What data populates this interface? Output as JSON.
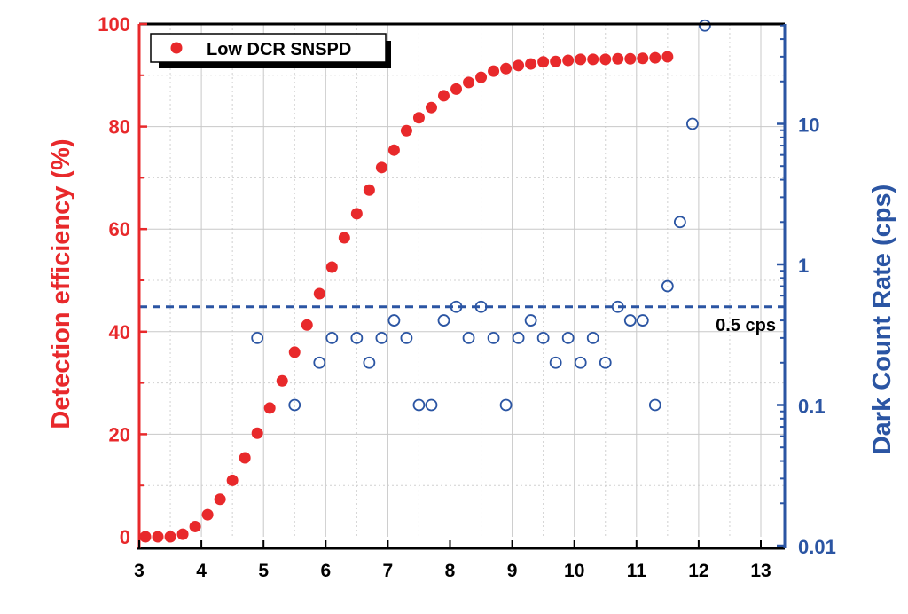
{
  "chart_data": {
    "type": "scatter",
    "title": "",
    "xlabel": "",
    "xlim": [
      3,
      13.4
    ],
    "xticks": [
      "3",
      "4",
      "5",
      "6",
      "7",
      "8",
      "9",
      "10",
      "11",
      "12",
      "13"
    ],
    "ylabel_left": "Detection efficiency (%)",
    "ylim_left": [
      0,
      100
    ],
    "yticks_left": [
      "0",
      "20",
      "40",
      "60",
      "80",
      "100"
    ],
    "ylabel_right": "Dark Count Rate (cps)",
    "ylim_right": [
      0.01,
      51
    ],
    "yscale_right": "log",
    "yticks_right": [
      "0.01",
      "0.1",
      "1",
      "10"
    ],
    "grid": true,
    "legend": {
      "position": "top-left",
      "entries": [
        "Low DCR SNSPD"
      ]
    },
    "annotations": [
      {
        "text": "0.5 cps",
        "type": "horizontal-dashed-line",
        "axis": "right",
        "value": 0.5
      }
    ],
    "colors": {
      "efficiency": "#e8292b",
      "dcr": "#2b55a3",
      "left_axis": "#e8292b",
      "right_axis": "#2b55a3"
    },
    "series": [
      {
        "name": "Low DCR SNSPD",
        "axis": "left",
        "marker": "filled-circle",
        "x": [
          3.1,
          3.3,
          3.5,
          3.7,
          3.9,
          4.1,
          4.3,
          4.5,
          4.7,
          4.9,
          5.1,
          5.3,
          5.5,
          5.7,
          5.9,
          6.1,
          6.3,
          6.5,
          6.7,
          6.9,
          7.1,
          7.3,
          7.5,
          7.7,
          7.9,
          8.1,
          8.3,
          8.5,
          8.7,
          8.9,
          9.1,
          9.3,
          9.5,
          9.7,
          9.9,
          10.1,
          10.3,
          10.5,
          10.7,
          10.9,
          11.1,
          11.3,
          11.5
        ],
        "y": [
          0,
          0,
          0,
          0.5,
          2,
          4.3,
          7.3,
          11,
          15.4,
          20.2,
          25.1,
          30.4,
          36,
          41.3,
          47.4,
          52.6,
          58.3,
          63,
          67.6,
          72,
          75.4,
          79.2,
          81.7,
          83.7,
          86,
          87.3,
          88.6,
          89.6,
          90.8,
          91.3,
          91.9,
          92.2,
          92.6,
          92.7,
          92.9,
          93.1,
          93.1,
          93.1,
          93.2,
          93.2,
          93.3,
          93.4,
          93.6
        ]
      },
      {
        "name": "Dark Count Rate",
        "axis": "right",
        "marker": "open-circle",
        "x": [
          4.9,
          5.5,
          5.9,
          6.1,
          6.5,
          6.7,
          6.9,
          7.1,
          7.3,
          7.5,
          7.7,
          7.9,
          8.1,
          8.3,
          8.5,
          8.7,
          8.9,
          9.1,
          9.3,
          9.5,
          9.7,
          9.9,
          10.1,
          10.3,
          10.5,
          10.7,
          10.9,
          11.1,
          11.3,
          11.5,
          11.7,
          11.9,
          12.1
        ],
        "y": [
          0.3,
          0.1,
          0.2,
          0.3,
          0.3,
          0.2,
          0.3,
          0.4,
          0.3,
          0.1,
          0.1,
          0.4,
          0.5,
          0.3,
          0.5,
          0.3,
          0.1,
          0.3,
          0.4,
          0.3,
          0.2,
          0.3,
          0.2,
          0.3,
          0.2,
          0.5,
          0.4,
          0.4,
          0.1,
          0.7,
          2,
          10,
          50
        ]
      }
    ]
  }
}
